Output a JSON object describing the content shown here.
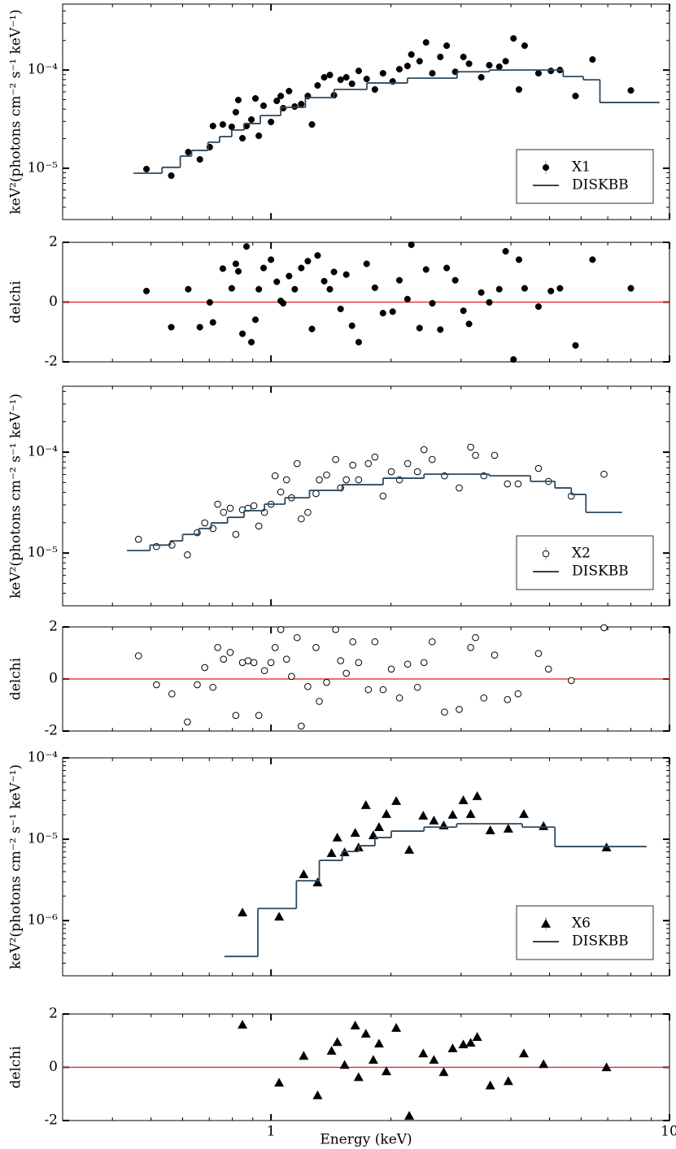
{
  "chart_data": [
    {
      "type": "scatter",
      "xlog": true,
      "ylog": true,
      "ylabel": "keV²(photons cm⁻² s⁻¹ keV⁻¹)",
      "xlim": [
        0.3,
        10
      ],
      "ylim": [
        3e-06,
        0.00047
      ],
      "xticks": [
        1,
        10
      ],
      "yticks": [
        {
          "value": 1e-05,
          "label": "10⁻⁵"
        },
        {
          "value": 0.0001,
          "label": "10⁻⁴"
        }
      ],
      "legend": "lower right",
      "series": [
        {
          "name": "X1",
          "marker": "circle",
          "color": "#000000",
          "x": [
            0.487,
            0.562,
            0.62,
            0.663,
            0.702,
            0.715,
            0.757,
            0.797,
            0.816,
            0.828,
            0.848,
            0.868,
            0.893,
            0.914,
            0.932,
            0.958,
            1.0,
            1.034,
            1.058,
            1.073,
            1.11,
            1.147,
            1.191,
            1.237,
            1.267,
            1.309,
            1.36,
            1.405,
            1.439,
            1.495,
            1.545,
            1.597,
            1.66,
            1.738,
            1.823,
            1.91,
            2.02,
            2.1,
            2.2,
            2.25,
            2.36,
            2.45,
            2.54,
            2.66,
            2.76,
            2.9,
            3.04,
            3.14,
            3.37,
            3.53,
            3.74,
            3.88,
            4.06,
            4.19,
            4.33,
            4.69,
            5.04,
            5.31,
            5.81,
            6.41,
            8.0
          ],
          "values": [
            9.8e-06,
            8.4e-06,
            1.46e-05,
            1.23e-05,
            1.64e-05,
            2.69e-05,
            2.79e-05,
            2.64e-05,
            3.72e-05,
            4.95e-05,
            2.02e-05,
            2.69e-05,
            3.13e-05,
            5.14e-05,
            2.14e-05,
            4.33e-05,
            2.96e-05,
            4.85e-05,
            5.44e-05,
            4.09e-05,
            6.1e-05,
            4.25e-05,
            4.5e-05,
            5.44e-05,
            2.79e-05,
            6.97e-05,
            8.43e-05,
            8.9e-05,
            5.54e-05,
            7.96e-05,
            8.43e-05,
            7.24e-05,
            9.8e-05,
            8.11e-05,
            6.34e-05,
            9.27e-05,
            7.66e-05,
            0.000102,
            0.00011,
            0.000144,
            0.000123,
            0.000191,
            9.27e-05,
            0.000136,
            0.000177,
            9.6e-05,
            0.000136,
            0.000116,
            8.43e-05,
            0.000112,
            0.000108,
            0.000123,
            0.00021,
            6.34e-05,
            0.000177,
            9.27e-05,
            9.8e-05,
            0.0001,
            5.44e-05,
            0.000128,
            6.2e-05
          ]
        },
        {
          "name": "DISKBB",
          "type": "step",
          "color": "#2e4a5f",
          "bins": [
            0.452,
            0.533,
            0.592,
            0.632,
            0.695,
            0.743,
            0.797,
            0.856,
            0.94,
            1.058,
            1.22,
            1.44,
            1.74,
            2.2,
            2.93,
            3.53,
            4.48,
            5.41,
            6.08,
            6.69,
            9.44
          ],
          "values": [
            8.9e-06,
            1.02e-05,
            1.33e-05,
            1.52e-05,
            1.84e-05,
            2.1e-05,
            2.45e-05,
            2.85e-05,
            3.44e-05,
            4.17e-05,
            5.24e-05,
            6.34e-05,
            7.38e-05,
            8.27e-05,
            9.6e-05,
            0.0001,
            0.0001,
            8.59e-05,
            7.96e-05,
            4.67e-05
          ]
        }
      ]
    },
    {
      "type": "scatter",
      "xlog": true,
      "ylabel": "delchi",
      "xlim": [
        0.3,
        10
      ],
      "ylim": [
        -2,
        2
      ],
      "xticks": [
        1,
        10
      ],
      "yticks": [
        -2,
        0,
        2
      ],
      "hline": 0,
      "hline_color": "#e41a1c",
      "series": [
        {
          "marker": "circle",
          "color": "#000000",
          "x": [
            0.487,
            0.562,
            0.62,
            0.663,
            0.702,
            0.715,
            0.757,
            0.797,
            0.816,
            0.828,
            0.848,
            0.868,
            0.893,
            0.914,
            0.932,
            0.958,
            1.0,
            1.034,
            1.058,
            1.073,
            1.11,
            1.147,
            1.191,
            1.237,
            1.267,
            1.309,
            1.36,
            1.405,
            1.439,
            1.495,
            1.545,
            1.597,
            1.66,
            1.738,
            1.823,
            1.91,
            2.02,
            2.1,
            2.2,
            2.25,
            2.36,
            2.45,
            2.54,
            2.66,
            2.76,
            2.9,
            3.04,
            3.14,
            3.37,
            3.53,
            3.74,
            3.88,
            4.06,
            4.19,
            4.33,
            4.69,
            5.04,
            5.31,
            5.81,
            6.41,
            8.0
          ],
          "values": [
            0.37,
            -0.84,
            0.43,
            -0.84,
            -0.01,
            -0.68,
            1.12,
            0.46,
            1.28,
            1.03,
            -1.06,
            1.86,
            -1.34,
            -0.59,
            0.43,
            1.14,
            1.42,
            0.68,
            0.04,
            -0.04,
            0.87,
            0.43,
            1.14,
            1.37,
            -0.9,
            1.56,
            0.7,
            0.43,
            1.01,
            -0.23,
            0.92,
            -0.79,
            -1.34,
            1.28,
            0.48,
            -0.37,
            -0.32,
            0.73,
            0.1,
            1.92,
            -0.87,
            1.09,
            -0.04,
            -0.92,
            1.14,
            0.73,
            -0.29,
            -0.73,
            0.32,
            -0.01,
            0.43,
            1.7,
            -1.92,
            1.42,
            0.46,
            -0.15,
            0.37,
            0.46,
            -1.45,
            1.42,
            0.46
          ]
        }
      ]
    },
    {
      "type": "scatter",
      "xlog": true,
      "ylog": true,
      "ylabel": "keV²(photons cm⁻² s⁻¹ keV⁻¹)",
      "xlim": [
        0.3,
        10
      ],
      "ylim": [
        3e-06,
        0.00045
      ],
      "xticks": [
        1,
        10
      ],
      "yticks": [
        {
          "value": 1e-05,
          "label": "10⁻⁵"
        },
        {
          "value": 0.0001,
          "label": "10⁻⁴"
        }
      ],
      "legend": "lower right",
      "series": [
        {
          "name": "X2",
          "marker": "open-circle",
          "color": "#000000",
          "x": [
            0.465,
            0.516,
            0.564,
            0.617,
            0.653,
            0.682,
            0.715,
            0.735,
            0.76,
            0.79,
            0.816,
            0.848,
            0.876,
            0.906,
            0.932,
            0.963,
            1.0,
            1.024,
            1.058,
            1.094,
            1.126,
            1.163,
            1.191,
            1.237,
            1.297,
            1.322,
            1.379,
            1.453,
            1.495,
            1.545,
            1.604,
            1.659,
            1.755,
            1.823,
            1.911,
            2.004,
            2.101,
            2.203,
            2.331,
            2.421,
            2.538,
            2.725,
            2.967,
            3.17,
            3.26,
            3.42,
            3.64,
            3.92,
            4.17,
            4.69,
            4.97,
            5.67,
            6.85
          ],
          "values": [
            1.37e-05,
            1.16e-05,
            1.2e-05,
            9.6e-06,
            1.59e-05,
            1.99e-05,
            1.75e-05,
            3.05e-05,
            2.53e-05,
            2.78e-05,
            1.53e-05,
            2.68e-05,
            2.78e-05,
            2.94e-05,
            1.85e-05,
            2.53e-05,
            3.05e-05,
            5.83e-05,
            4.03e-05,
            5.32e-05,
            3.53e-05,
            7.71e-05,
            2.18e-05,
            2.53e-05,
            3.88e-05,
            5.32e-05,
            5.94e-05,
            8.46e-05,
            4.42e-05,
            5.32e-05,
            7.43e-05,
            5.32e-05,
            7.71e-05,
            8.95e-05,
            3.67e-05,
            6.4e-05,
            5.32e-05,
            7.71e-05,
            6.4e-05,
            0.000106,
            8.46e-05,
            5.83e-05,
            4.42e-05,
            0.000112,
            9.3e-05,
            5.83e-05,
            9.3e-05,
            4.85e-05,
            4.85e-05,
            6.9e-05,
            5.13e-05,
            3.67e-05,
            6.05e-05
          ]
        },
        {
          "name": "DISKBB",
          "type": "step",
          "color": "#2e4a5f",
          "bins": [
            0.435,
            0.497,
            0.559,
            0.6,
            0.659,
            0.708,
            0.778,
            0.856,
            0.963,
            1.084,
            1.249,
            1.509,
            1.911,
            2.421,
            2.93,
            3.53,
            4.48,
            5.16,
            5.67,
            6.17,
            7.6
          ],
          "values": [
            1.06e-05,
            1.2e-05,
            1.32e-05,
            1.53e-05,
            1.75e-05,
            1.99e-05,
            2.26e-05,
            2.63e-05,
            3.05e-05,
            3.53e-05,
            4.18e-05,
            4.76e-05,
            5.52e-05,
            6.05e-05,
            6.05e-05,
            5.83e-05,
            5.13e-05,
            4.42e-05,
            3.81e-05,
            2.53e-05
          ]
        }
      ]
    },
    {
      "type": "scatter",
      "xlog": true,
      "ylabel": "delchi",
      "xlim": [
        0.3,
        10
      ],
      "ylim": [
        -2,
        2
      ],
      "xticks": [
        1,
        10
      ],
      "yticks": [
        -2,
        0,
        2
      ],
      "hline": 0,
      "hline_color": "#e41a1c",
      "series": [
        {
          "marker": "open-circle",
          "color": "#000000",
          "x": [
            0.465,
            0.516,
            0.564,
            0.617,
            0.653,
            0.682,
            0.715,
            0.735,
            0.76,
            0.79,
            0.816,
            0.848,
            0.876,
            0.906,
            0.932,
            0.963,
            1.0,
            1.024,
            1.058,
            1.094,
            1.126,
            1.163,
            1.191,
            1.237,
            1.297,
            1.322,
            1.379,
            1.453,
            1.495,
            1.545,
            1.604,
            1.659,
            1.755,
            1.823,
            1.911,
            2.004,
            2.101,
            2.203,
            2.331,
            2.421,
            2.538,
            2.725,
            2.967,
            3.17,
            3.26,
            3.42,
            3.64,
            3.92,
            4.17,
            4.69,
            4.97,
            5.67,
            6.85
          ],
          "values": [
            0.89,
            -0.22,
            -0.57,
            -1.65,
            -0.22,
            0.44,
            -0.32,
            1.21,
            0.76,
            1.02,
            -1.4,
            0.63,
            0.7,
            0.63,
            -1.4,
            0.32,
            0.63,
            1.21,
            1.9,
            0.76,
            0.1,
            1.59,
            -1.81,
            -0.29,
            1.21,
            -0.86,
            -0.13,
            1.9,
            0.7,
            0.22,
            1.43,
            0.63,
            -0.41,
            1.43,
            -0.41,
            0.38,
            -0.73,
            0.57,
            -0.32,
            0.63,
            1.43,
            -1.27,
            -1.17,
            1.21,
            1.59,
            -0.73,
            0.92,
            -0.79,
            -0.57,
            0.98,
            0.38,
            -0.06,
            1.97
          ]
        }
      ]
    },
    {
      "type": "scatter",
      "xlog": true,
      "ylog": true,
      "ylabel": "keV²(photons cm⁻² s⁻¹ keV⁻¹)",
      "xlim": [
        0.3,
        10
      ],
      "ylim": [
        2.1e-07,
        0.0001
      ],
      "xticks": [
        1,
        10
      ],
      "yticks": [
        {
          "value": 1e-06,
          "label": "10⁻⁶"
        },
        {
          "value": 1e-05,
          "label": "10⁻⁵"
        },
        {
          "value": 0.0001,
          "label": "10⁻⁴"
        }
      ],
      "legend": "lower right",
      "series": [
        {
          "name": "X6",
          "marker": "triangle",
          "color": "#000000",
          "x": [
            0.848,
            1.048,
            1.208,
            1.309,
            1.419,
            1.467,
            1.53,
            1.627,
            1.659,
            1.73,
            1.806,
            1.867,
            1.948,
            2.062,
            2.223,
            2.41,
            2.563,
            2.713,
            2.857,
            3.038,
            3.17,
            3.292,
            3.55,
            3.94,
            4.31,
            4.83,
            6.95
          ],
          "values": [
            1.26e-06,
            1.12e-06,
            3.72e-06,
            2.95e-06,
            6.76e-06,
            1.05e-05,
            6.92e-06,
            1.2e-05,
            7.94e-06,
            2.63e-05,
            1.12e-05,
            1.41e-05,
            2.04e-05,
            2.95e-05,
            7.41e-06,
            1.95e-05,
            1.7e-05,
            1.48e-05,
            2e-05,
            3.02e-05,
            2.04e-05,
            3.39e-05,
            1.29e-05,
            1.35e-05,
            2.04e-05,
            1.45e-05,
            7.94e-06
          ]
        },
        {
          "name": "DISKBB",
          "type": "step",
          "color": "#2e4a5f",
          "bins": [
            0.764,
            0.927,
            1.158,
            1.322,
            1.509,
            1.659,
            1.823,
            2.004,
            2.421,
            2.925,
            3.534,
            4.27,
            5.16,
            8.76
          ],
          "values": [
            3.63e-07,
            1.41e-06,
            3.09e-06,
            5.5e-06,
            7.08e-06,
            8.32e-06,
            1.05e-05,
            1.26e-05,
            1.41e-05,
            1.55e-05,
            1.55e-05,
            1.41e-05,
            8.13e-06
          ]
        }
      ]
    },
    {
      "type": "scatter",
      "xlog": true,
      "ylabel": "delchi",
      "xlabel": "Energy (keV)",
      "xlim": [
        0.3,
        10
      ],
      "ylim": [
        -2,
        2
      ],
      "xticks": [
        1,
        10
      ],
      "yticks": [
        -2,
        0,
        2
      ],
      "hline": 0,
      "hline_color": "#e41a1c",
      "series": [
        {
          "marker": "triangle",
          "color": "#000000",
          "x": [
            0.848,
            1.048,
            1.208,
            1.309,
            1.419,
            1.467,
            1.53,
            1.627,
            1.659,
            1.73,
            1.806,
            1.867,
            1.948,
            2.062,
            2.223,
            2.41,
            2.563,
            2.713,
            2.857,
            3.038,
            3.17,
            3.292,
            3.55,
            3.94,
            4.31,
            4.83,
            6.95
          ],
          "values": [
            1.6,
            -0.58,
            0.43,
            -1.05,
            0.62,
            0.95,
            0.09,
            1.57,
            -0.37,
            1.26,
            0.28,
            0.89,
            -0.15,
            1.48,
            -1.82,
            0.52,
            0.28,
            -0.18,
            0.71,
            0.86,
            0.92,
            1.14,
            -0.68,
            -0.52,
            0.52,
            0.12,
            0.0
          ]
        }
      ]
    }
  ]
}
